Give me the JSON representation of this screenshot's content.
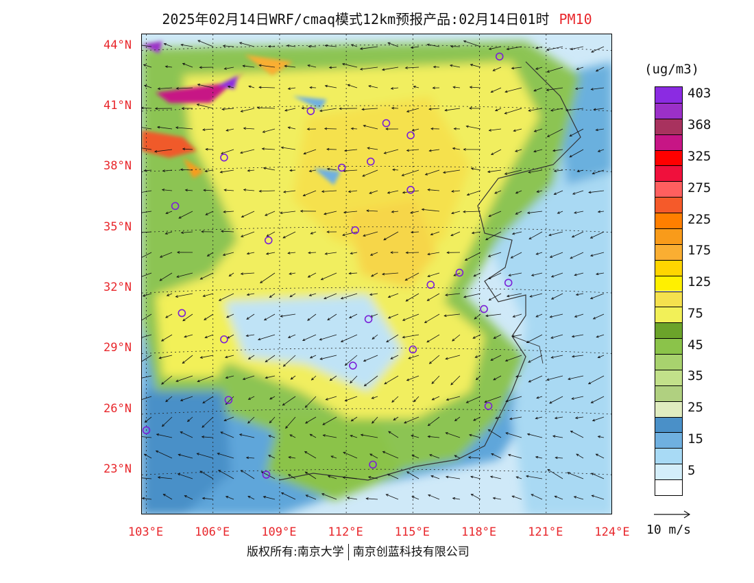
{
  "title": {
    "main": "2025年02月14日WRF/cmaq模式12km预报产品:02月14日01时",
    "pollutant": "PM10"
  },
  "map": {
    "lat_labels": [
      "44°N",
      "41°N",
      "38°N",
      "35°N",
      "32°N",
      "29°N",
      "26°N",
      "23°N"
    ],
    "lon_labels": [
      "103°E",
      "106°E",
      "109°E",
      "112°E",
      "115°E",
      "118°E",
      "121°E",
      "124°E"
    ],
    "lat_values": [
      44,
      41,
      38,
      35,
      32,
      29,
      26,
      23
    ],
    "lon_values": [
      103,
      106,
      109,
      112,
      115,
      118,
      121,
      124
    ],
    "lat_range": [
      20.8,
      44.6
    ],
    "lon_range": [
      102.8,
      124
    ],
    "city_markers": [
      {
        "lon": 118.9,
        "lat": 43.5
      },
      {
        "lon": 110.4,
        "lat": 40.8
      },
      {
        "lon": 113.8,
        "lat": 40.2
      },
      {
        "lon": 114.9,
        "lat": 39.6
      },
      {
        "lon": 106.5,
        "lat": 38.5
      },
      {
        "lon": 111.8,
        "lat": 38.0
      },
      {
        "lon": 113.1,
        "lat": 38.3
      },
      {
        "lon": 114.9,
        "lat": 36.9
      },
      {
        "lon": 104.3,
        "lat": 36.1
      },
      {
        "lon": 112.4,
        "lat": 34.9
      },
      {
        "lon": 108.5,
        "lat": 34.4
      },
      {
        "lon": 117.1,
        "lat": 32.8
      },
      {
        "lon": 119.3,
        "lat": 32.3
      },
      {
        "lon": 115.8,
        "lat": 32.2
      },
      {
        "lon": 104.6,
        "lat": 30.8
      },
      {
        "lon": 113.0,
        "lat": 30.5
      },
      {
        "lon": 118.2,
        "lat": 31.0
      },
      {
        "lon": 106.5,
        "lat": 29.5
      },
      {
        "lon": 115.0,
        "lat": 29.0
      },
      {
        "lon": 112.3,
        "lat": 28.2
      },
      {
        "lon": 106.7,
        "lat": 26.5
      },
      {
        "lon": 118.4,
        "lat": 26.2
      },
      {
        "lon": 103.0,
        "lat": 25.0
      },
      {
        "lon": 113.2,
        "lat": 23.3
      },
      {
        "lon": 108.4,
        "lat": 22.8
      }
    ]
  },
  "legend": {
    "unit": "(ug/m3)",
    "levels": [
      {
        "label": "403",
        "color": "#8B2BE2"
      },
      {
        "label": "",
        "color": "#9B30C8"
      },
      {
        "label": "368",
        "color": "#A8325E"
      },
      {
        "label": "",
        "color": "#C71585"
      },
      {
        "label": "325",
        "color": "#FF0000"
      },
      {
        "label": "",
        "color": "#F0103C"
      },
      {
        "label": "275",
        "color": "#FF5F5F"
      },
      {
        "label": "",
        "color": "#F55A2A"
      },
      {
        "label": "225",
        "color": "#FF7F00"
      },
      {
        "label": "",
        "color": "#F99B1A"
      },
      {
        "label": "175",
        "color": "#FAAE32"
      },
      {
        "label": "",
        "color": "#FFD500"
      },
      {
        "label": "125",
        "color": "#FFF000"
      },
      {
        "label": "",
        "color": "#F5E14E"
      },
      {
        "label": "75",
        "color": "#F2F058"
      },
      {
        "label": "",
        "color": "#6BA32A"
      },
      {
        "label": "45",
        "color": "#8BC34A"
      },
      {
        "label": "",
        "color": "#A8D26E"
      },
      {
        "label": "35",
        "color": "#C2E08A"
      },
      {
        "label": "",
        "color": "#B0D080"
      },
      {
        "label": "25",
        "color": "#E0ECC0"
      },
      {
        "label": "",
        "color": "#4A90C8"
      },
      {
        "label": "15",
        "color": "#6FB0E0"
      },
      {
        "label": "",
        "color": "#A8DAF5"
      },
      {
        "label": "5",
        "color": "#D4EEFA"
      },
      {
        "label": "",
        "color": "#FFFFFF"
      }
    ]
  },
  "vector_reference": {
    "label": "10 m/s",
    "speed": 10
  },
  "copyright": {
    "left": "版权所有:南京大学",
    "right": "南京创蓝科技有限公司"
  }
}
